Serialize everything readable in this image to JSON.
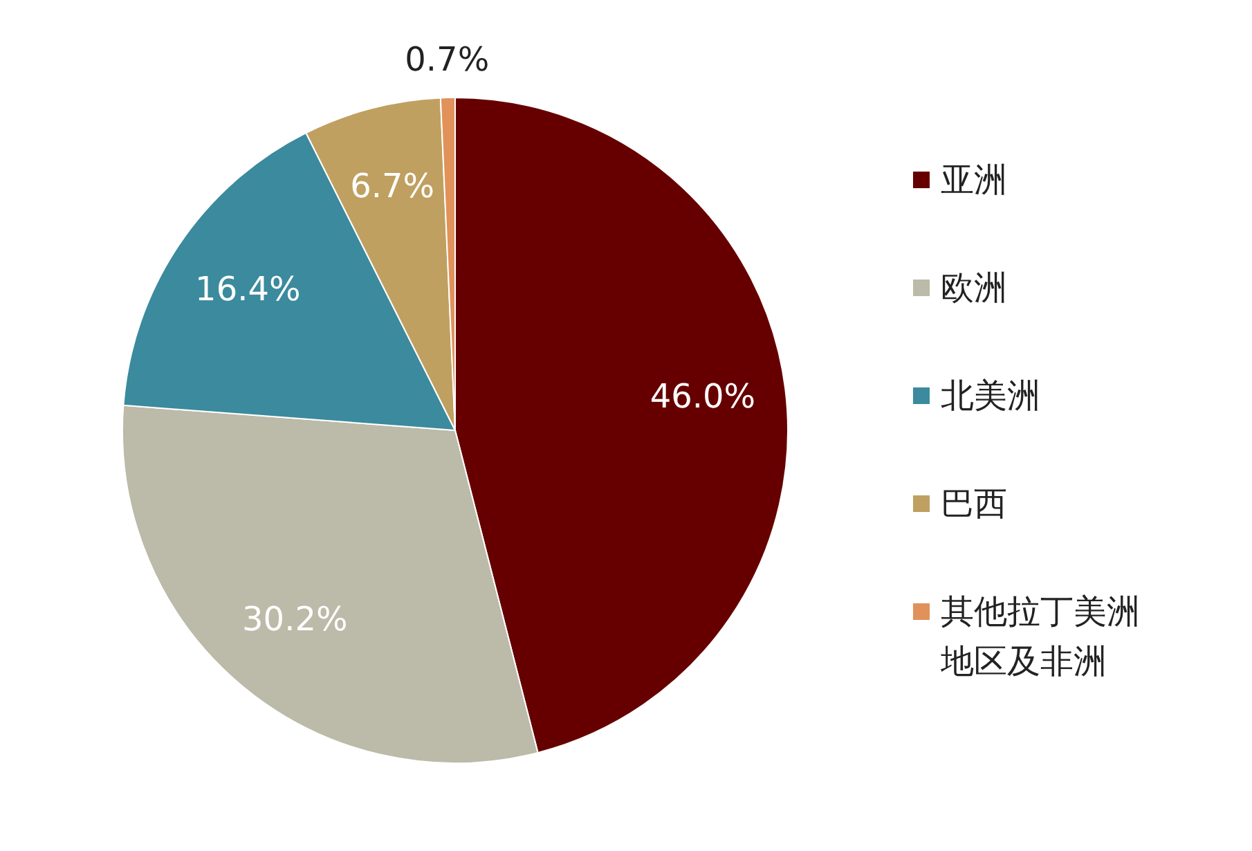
{
  "chart_data": {
    "type": "pie",
    "categories": [
      "亚洲",
      "欧洲",
      "北美洲",
      "巴西",
      "其他拉丁美洲地区及非洲"
    ],
    "values": [
      46.0,
      30.2,
      16.4,
      6.7,
      0.7
    ],
    "colors": [
      "#660000",
      "#bcbaa8",
      "#3b8a9e",
      "#c0a060",
      "#e0925a"
    ],
    "value_labels": [
      "46.0%",
      "30.2%",
      "16.4%",
      "6.7%",
      "0.7%"
    ],
    "legend": "right"
  }
}
